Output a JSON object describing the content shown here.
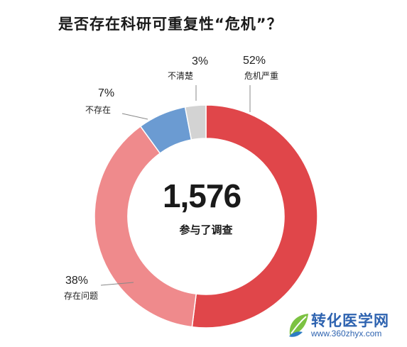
{
  "title": "是否存在科研可重复性“危机”？",
  "chart_data": {
    "type": "pie",
    "categories": [
      "危机严重",
      "存在问题",
      "不存在",
      "不清楚"
    ],
    "values": [
      52,
      38,
      7,
      3
    ],
    "labels": [
      "52%",
      "38%",
      "7%",
      "3%"
    ],
    "colors": [
      "#e0464a",
      "#ef8a8c",
      "#6b9bd2",
      "#d3d3d3"
    ],
    "total": "1,576",
    "total_caption": "参与了调查"
  },
  "watermark": {
    "title": "转化医学网",
    "url": "www.360zhyx.com"
  }
}
